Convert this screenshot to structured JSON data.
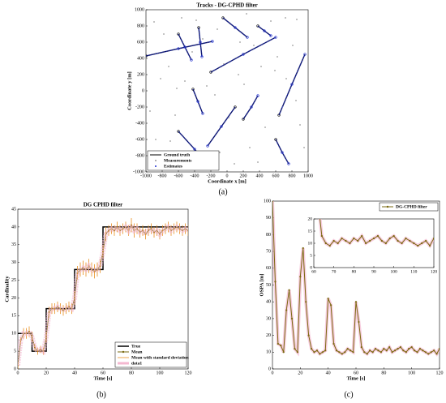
{
  "chart_data": [
    {
      "type": "scatter",
      "title": "Tracks - DG-CPHD filter",
      "xlabel": "Coordinate x [m]",
      "ylabel": "Coordinate y [m]",
      "caption": "(a)",
      "xlim": [
        -1000,
        1000
      ],
      "ylim": [
        -1000,
        1000
      ],
      "xticks": [
        -1000,
        -800,
        -600,
        -400,
        -200,
        0,
        200,
        400,
        600,
        800,
        1000
      ],
      "yticks": [
        -1000,
        -800,
        -600,
        -400,
        -200,
        0,
        200,
        400,
        600,
        800,
        1000
      ],
      "grid": false,
      "legend": "lower left",
      "series": [
        {
          "name": "Ground truth",
          "color": "#000000",
          "style": "line",
          "tracks": [
            {
              "x": [
                -1000,
                -600,
                -180
              ],
              "y": [
                430,
                520,
                610
              ]
            },
            {
              "x": [
                -350,
                -330,
                -310
              ],
              "y": [
                780,
                600,
                420
              ]
            },
            {
              "x": [
                -600,
                -520,
                -440
              ],
              "y": [
                700,
                540,
                380
              ]
            },
            {
              "x": [
                -420,
                -360,
                -300
              ],
              "y": [
                20,
                -130,
                -280
              ]
            },
            {
              "x": [
                640,
                800,
                960
              ],
              "y": [
                -300,
                80,
                450
              ]
            },
            {
              "x": [
                -200,
                200,
                600
              ],
              "y": [
                230,
                450,
                660
              ]
            },
            {
              "x": [
                380,
                460,
                540
              ],
              "y": [
                800,
                740,
                680
              ]
            },
            {
              "x": [
                100,
                -70,
                -240
              ],
              "y": [
                -200,
                -440,
                -680
              ]
            },
            {
              "x": [
                200,
                300,
                380
              ],
              "y": [
                -350,
                -200,
                -60
              ]
            },
            {
              "x": [
                -50,
                100,
                250
              ],
              "y": [
                900,
                780,
                660
              ]
            },
            {
              "x": [
                600,
                680,
                760
              ],
              "y": [
                -600,
                -760,
                -900
              ]
            },
            {
              "x": [
                -600,
                -400,
                -260
              ],
              "y": [
                -500,
                -720,
                -900
              ]
            }
          ]
        },
        {
          "name": "Measurements",
          "color": "#999999",
          "style": "points",
          "x": [
            -900,
            -780,
            -640,
            -520,
            -410,
            -300,
            -150,
            -40,
            90,
            210,
            330,
            470,
            590,
            720,
            850,
            950,
            -950,
            -820,
            -700,
            -560,
            -430,
            -260,
            -120,
            20,
            160,
            280,
            420,
            540,
            680,
            810,
            900,
            -880,
            -620,
            -380,
            -90,
            140,
            380,
            620,
            860,
            -720,
            -250,
            240,
            730
          ],
          "y": [
            850,
            700,
            -300,
            120,
            -820,
            640,
            -50,
            330,
            -900,
            80,
            560,
            -450,
            250,
            900,
            -120,
            -700,
            -250,
            150,
            -620,
            900,
            480,
            -880,
            760,
            -330,
            600,
            -700,
            300,
            860,
            -200,
            560,
            -420,
            -600,
            30,
            870,
            -760,
            200,
            -880,
            420,
            880,
            300,
            60,
            950,
            150
          ]
        },
        {
          "name": "Estimates",
          "color": "#1f2fd0",
          "style": "track-points",
          "tracks": [
            {
              "x": [
                -1000,
                -600,
                -180
              ],
              "y": [
                430,
                520,
                610
              ]
            },
            {
              "x": [
                -350,
                -330,
                -310
              ],
              "y": [
                780,
                600,
                420
              ]
            },
            {
              "x": [
                -600,
                -520,
                -440
              ],
              "y": [
                700,
                540,
                380
              ]
            },
            {
              "x": [
                -420,
                -360,
                -300
              ],
              "y": [
                20,
                -130,
                -280
              ]
            },
            {
              "x": [
                640,
                800,
                960
              ],
              "y": [
                -300,
                80,
                450
              ]
            },
            {
              "x": [
                -200,
                200,
                600
              ],
              "y": [
                230,
                450,
                660
              ]
            },
            {
              "x": [
                380,
                460,
                540
              ],
              "y": [
                800,
                740,
                680
              ]
            },
            {
              "x": [
                100,
                -70,
                -240
              ],
              "y": [
                -200,
                -440,
                -680
              ]
            },
            {
              "x": [
                200,
                300,
                380
              ],
              "y": [
                -350,
                -200,
                -60
              ]
            },
            {
              "x": [
                -50,
                100,
                250
              ],
              "y": [
                900,
                780,
                660
              ]
            },
            {
              "x": [
                600,
                680,
                760
              ],
              "y": [
                -600,
                -760,
                -900
              ]
            },
            {
              "x": [
                -600,
                -400,
                -260
              ],
              "y": [
                -500,
                -720,
                -900
              ]
            }
          ]
        }
      ]
    },
    {
      "type": "line",
      "title": "DG CPHD filter",
      "xlabel": "Time [s]",
      "ylabel": "Cardinality",
      "caption": "(b)",
      "xlim": [
        0,
        120
      ],
      "ylim": [
        0,
        45
      ],
      "xticks": [
        0,
        20,
        40,
        60,
        80,
        100,
        120
      ],
      "yticks": [
        0,
        5,
        10,
        15,
        20,
        25,
        30,
        35,
        40,
        45
      ],
      "grid": false,
      "legend": "lower right",
      "series": [
        {
          "name": "True",
          "color": "#000000",
          "width": 1.5,
          "x": [
            0,
            10,
            10,
            20,
            20,
            40,
            40,
            60,
            60,
            120
          ],
          "values": [
            10,
            10,
            5,
            5,
            17,
            17,
            28,
            28,
            40,
            40
          ]
        },
        {
          "name": "Mean",
          "color": "#7a6a10",
          "width": 1,
          "marker": true,
          "x": [
            0,
            2,
            4,
            6,
            8,
            10,
            12,
            14,
            16,
            18,
            20,
            22,
            24,
            26,
            28,
            30,
            32,
            34,
            36,
            38,
            40,
            42,
            44,
            46,
            48,
            50,
            52,
            54,
            56,
            58,
            60,
            62,
            64,
            66,
            68,
            70,
            72,
            74,
            76,
            78,
            80,
            82,
            84,
            86,
            88,
            90,
            92,
            94,
            96,
            98,
            100,
            102,
            104,
            106,
            108,
            110,
            112,
            114,
            116,
            118,
            120
          ],
          "values": [
            1,
            8,
            10,
            10,
            10.5,
            9,
            6,
            5,
            5.5,
            5,
            9,
            16,
            17,
            17,
            17.5,
            17,
            16.5,
            17,
            17.5,
            17,
            20,
            27,
            28,
            28.5,
            28,
            29,
            28,
            27.5,
            28,
            29,
            33,
            38,
            39,
            39.5,
            39,
            40,
            39,
            39.5,
            40,
            39,
            40.5,
            39,
            39.5,
            38.5,
            39,
            38,
            39,
            39.5,
            38.5,
            39,
            38,
            39,
            39.5,
            40,
            39,
            39.5,
            40,
            39.5,
            39,
            39.5,
            39
          ]
        },
        {
          "name": "Mean with standard deviation",
          "color": "#e89020",
          "width": 0.8,
          "errorbars": true,
          "x": [
            0,
            2,
            4,
            6,
            8,
            10,
            12,
            14,
            16,
            18,
            20,
            22,
            24,
            26,
            28,
            30,
            32,
            34,
            36,
            38,
            40,
            42,
            44,
            46,
            48,
            50,
            52,
            54,
            56,
            58,
            60,
            62,
            64,
            66,
            68,
            70,
            72,
            74,
            76,
            78,
            80,
            82,
            84,
            86,
            88,
            90,
            92,
            94,
            96,
            98,
            100,
            102,
            104,
            106,
            108,
            110,
            112,
            114,
            116,
            118,
            120
          ],
          "values": [
            1,
            8,
            10,
            10,
            10.5,
            9,
            6,
            5,
            5.5,
            5,
            9,
            16,
            17,
            17,
            17.5,
            17,
            16.5,
            17,
            17.5,
            17,
            20,
            27,
            28,
            28.5,
            28,
            29,
            28,
            27.5,
            28,
            29,
            33,
            38,
            39,
            39.5,
            39,
            40,
            39,
            39.5,
            40,
            39,
            40.5,
            39,
            39.5,
            38.5,
            39,
            38,
            39,
            39.5,
            38.5,
            39,
            38,
            39,
            39.5,
            40,
            39,
            39.5,
            40,
            39.5,
            39,
            39.5,
            39
          ],
          "errors": [
            1,
            1,
            1.5,
            1.5,
            1.5,
            1.5,
            1,
            1,
            1,
            1,
            1.5,
            1.5,
            1.5,
            1.5,
            1.5,
            1.5,
            1.5,
            1.5,
            1.5,
            1.5,
            2,
            2,
            2,
            2,
            2,
            2,
            2,
            2,
            2,
            2,
            2,
            2,
            1.5,
            1.5,
            1.5,
            1.5,
            1.5,
            1.5,
            1.5,
            1.5,
            2,
            2,
            1.5,
            1.5,
            1.5,
            1.5,
            1.5,
            1.5,
            1.5,
            1.5,
            1.5,
            1.5,
            1.5,
            1.5,
            1.5,
            1.5,
            1.5,
            1.5,
            1.5,
            1.5,
            1.5
          ]
        },
        {
          "name": "data1",
          "color": "#f4b8d0",
          "width": 6,
          "dashed": true,
          "x": [
            0,
            2,
            4,
            6,
            8,
            10,
            12,
            14,
            16,
            18,
            20,
            22,
            24,
            26,
            28,
            30,
            32,
            34,
            36,
            38,
            40,
            42,
            44,
            46,
            48,
            50,
            52,
            54,
            56,
            58,
            60,
            62,
            64,
            66,
            68,
            70,
            72,
            74,
            76,
            78,
            80,
            82,
            84,
            86,
            88,
            90,
            92,
            94,
            96,
            98,
            100,
            102,
            104,
            106,
            108,
            110,
            112,
            114,
            116,
            118,
            120
          ],
          "values": [
            1,
            8,
            10,
            10,
            10.5,
            9,
            6,
            5,
            5.5,
            5,
            9,
            16,
            17,
            17,
            17.5,
            17,
            16.5,
            17,
            17.5,
            17,
            20,
            27,
            28,
            28.5,
            28,
            29,
            28,
            27.5,
            28,
            29,
            33,
            38,
            39,
            39.5,
            39,
            40,
            39,
            39.5,
            40,
            39,
            40.5,
            39,
            39.5,
            38.5,
            39,
            38,
            39,
            39.5,
            38.5,
            39,
            38,
            39,
            39.5,
            40,
            39,
            39.5,
            40,
            39.5,
            39,
            39.5,
            39
          ]
        }
      ]
    },
    {
      "type": "line",
      "xlabel": "Time [s]",
      "ylabel": "OSPA [m]",
      "caption": "(c)",
      "xlim": [
        0,
        120
      ],
      "ylim": [
        0,
        100
      ],
      "xticks": [
        0,
        20,
        40,
        60,
        80,
        100,
        120
      ],
      "yticks": [
        0,
        10,
        20,
        30,
        40,
        50,
        60,
        70,
        80,
        90,
        100
      ],
      "grid": false,
      "legend": "upper right",
      "inset": {
        "xlim": [
          60,
          120
        ],
        "ylim": [
          0,
          20
        ],
        "xticks": [
          60,
          70,
          80,
          90,
          100,
          110,
          120
        ],
        "yticks": [
          0,
          5,
          10,
          15,
          20
        ]
      },
      "series": [
        {
          "name": "DG-CPHD filter",
          "color": "#7a6a10",
          "width": 1,
          "marker": true,
          "halo": "#f4b8d0",
          "x": [
            0,
            2,
            4,
            6,
            8,
            10,
            12,
            14,
            16,
            18,
            20,
            22,
            24,
            26,
            28,
            30,
            32,
            34,
            36,
            38,
            40,
            42,
            44,
            46,
            48,
            50,
            52,
            54,
            56,
            58,
            60,
            62,
            64,
            66,
            68,
            70,
            72,
            74,
            76,
            78,
            80,
            82,
            84,
            86,
            88,
            90,
            92,
            94,
            96,
            98,
            100,
            102,
            104,
            106,
            108,
            110,
            112,
            114,
            116,
            118,
            120
          ],
          "values": [
            100,
            52,
            15,
            14,
            10,
            35,
            47,
            30,
            12,
            10,
            55,
            72,
            40,
            20,
            12,
            10,
            11,
            9,
            10,
            11,
            42,
            38,
            15,
            11,
            10,
            9,
            10,
            12,
            11,
            10,
            40,
            28,
            13,
            10,
            9,
            11,
            10,
            12,
            11,
            10,
            12,
            11,
            13,
            10,
            11,
            12,
            13,
            11,
            10,
            12,
            13,
            11,
            10,
            12,
            11,
            10,
            9,
            10,
            11,
            9,
            12
          ]
        }
      ]
    }
  ]
}
